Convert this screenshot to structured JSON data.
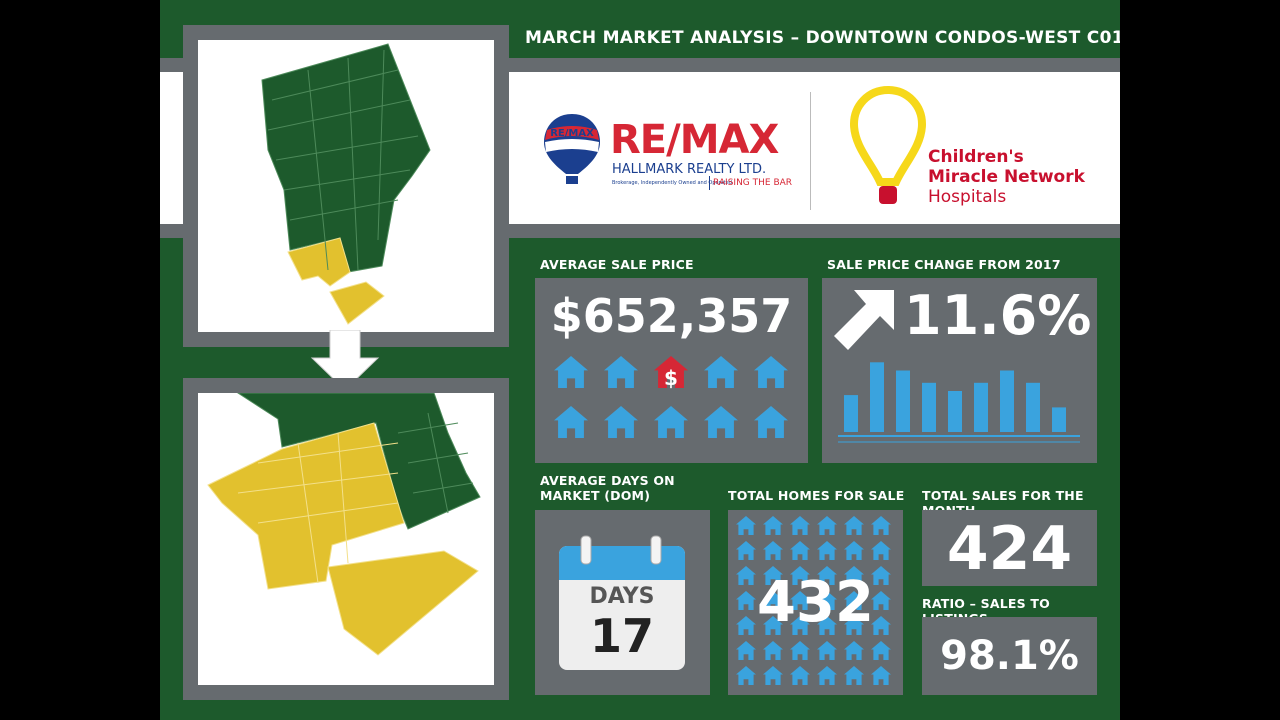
{
  "header": {
    "title": "MARCH MARKET ANALYSIS – DOWNTOWN CONDOS-WEST C01"
  },
  "brand": {
    "remax_balloon_text": "RE/MAX",
    "remax_name": "RE/MAX",
    "remax_sub": "HALLMARK REALTY LTD.",
    "remax_fineprint": "Brokerage, Independently Owned and Operated",
    "remax_slogan": "RAISING THE BAR",
    "cmn_line1": "Children's",
    "cmn_line2": "Miracle Network",
    "cmn_line3": "Hospitals"
  },
  "stats": {
    "avg_sale_price": {
      "label": "AVERAGE SALE PRICE",
      "value": "$652,357",
      "house_symbol": "$"
    },
    "price_change": {
      "label": "SALE PRICE CHANGE FROM 2017",
      "value": "11.6%",
      "bars": [
        0.45,
        0.85,
        0.75,
        0.6,
        0.5,
        0.6,
        0.75,
        0.6,
        0.3
      ]
    },
    "avg_dom": {
      "label_line1": "AVERAGE DAYS ON",
      "label_line2": "MARKET (DOM)",
      "unit": "DAYS",
      "value": "17"
    },
    "total_homes": {
      "label": "TOTAL HOMES FOR SALE",
      "value": "432"
    },
    "total_sales": {
      "label": "TOTAL SALES FOR THE MONTH",
      "value": "424"
    },
    "ratio": {
      "label": "RATIO – SALES TO LISTINGS",
      "value": "98.1%"
    }
  },
  "colors": {
    "green": "#1d5a2c",
    "yellow": "#e2c12e",
    "grey": "#666b6f",
    "blue": "#3aa3de",
    "remax_red": "#d62735",
    "remax_blue": "#1b3f8f",
    "cmn_red": "#c8102e"
  }
}
